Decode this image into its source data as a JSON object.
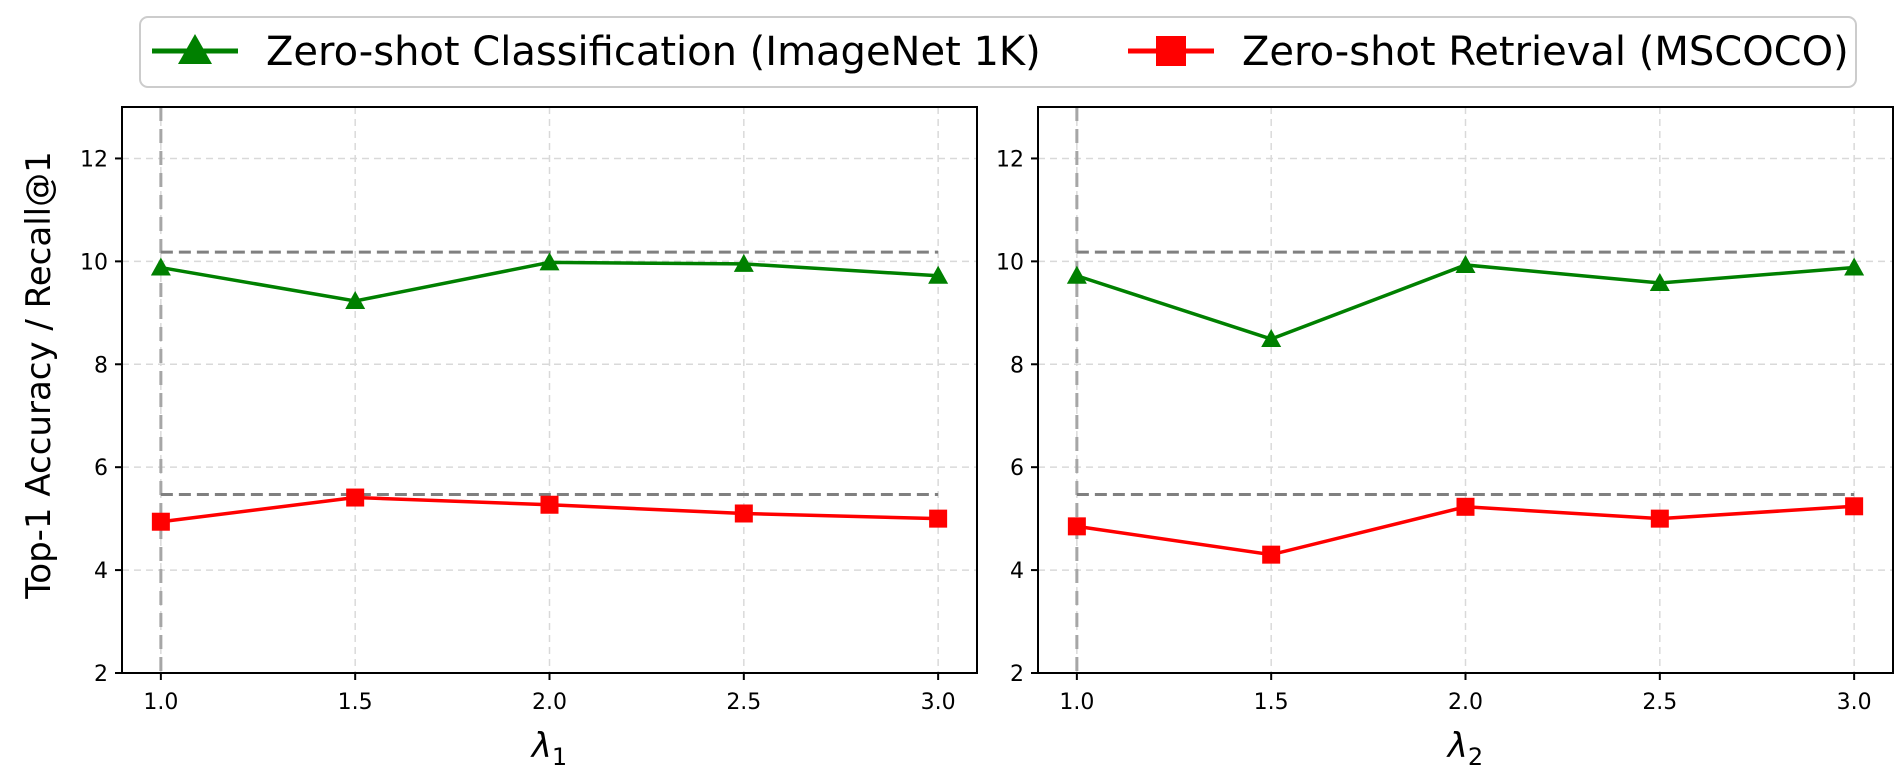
{
  "legend": {
    "entries": [
      {
        "label": "Zero-shot Classification (ImageNet 1K)",
        "color": "#008000",
        "marker": "triangle"
      },
      {
        "label": "Zero-shot Retrieval (MSCOCO)",
        "color": "#ff0000",
        "marker": "square"
      }
    ],
    "placement": "top-center"
  },
  "ylabel": "Top-1 Accuracy / Recall@1",
  "colors": {
    "classification": "#008000",
    "retrieval": "#ff0000",
    "reference": "#808080",
    "grid": "#d9d9d9"
  },
  "chart_data": [
    {
      "type": "line",
      "xlabel_base": "λ",
      "xlabel_sub": "1",
      "x": [
        1.0,
        1.5,
        2.0,
        2.5,
        3.0
      ],
      "x_ticks": [
        "1.0",
        "1.5",
        "2.0",
        "2.5",
        "3.0"
      ],
      "y_ticks": [
        "2",
        "4",
        "6",
        "8",
        "10",
        "12"
      ],
      "xlim": [
        0.9,
        3.1
      ],
      "ylim": [
        2,
        13
      ],
      "grid": true,
      "series": [
        {
          "name": "Zero-shot Classification (ImageNet 1K)",
          "values": [
            9.88,
            9.23,
            9.98,
            9.95,
            9.72
          ]
        },
        {
          "name": "Zero-shot Retrieval (MSCOCO)",
          "values": [
            4.94,
            5.41,
            5.27,
            5.1,
            5.0
          ]
        }
      ],
      "reference_lines": [
        {
          "y": 10.18,
          "x_range": [
            1.0,
            3.0
          ]
        },
        {
          "y": 5.47,
          "x_range": [
            1.0,
            3.0
          ]
        }
      ],
      "vertical_reference": {
        "x": 1.0
      }
    },
    {
      "type": "line",
      "xlabel_base": "λ",
      "xlabel_sub": "2",
      "x": [
        1.0,
        1.5,
        2.0,
        2.5,
        3.0
      ],
      "x_ticks": [
        "1.0",
        "1.5",
        "2.0",
        "2.5",
        "3.0"
      ],
      "y_ticks": [
        "2",
        "4",
        "6",
        "8",
        "10",
        "12"
      ],
      "xlim": [
        0.9,
        3.1
      ],
      "ylim": [
        2,
        13
      ],
      "grid": true,
      "series": [
        {
          "name": "Zero-shot Classification (ImageNet 1K)",
          "values": [
            9.72,
            8.49,
            9.93,
            9.58,
            9.88
          ]
        },
        {
          "name": "Zero-shot Retrieval (MSCOCO)",
          "values": [
            4.85,
            4.3,
            5.23,
            5.0,
            5.24
          ]
        }
      ],
      "reference_lines": [
        {
          "y": 10.18,
          "x_range": [
            1.0,
            3.0
          ]
        },
        {
          "y": 5.47,
          "x_range": [
            1.0,
            3.0
          ]
        }
      ],
      "vertical_reference": {
        "x": 1.0
      }
    }
  ]
}
